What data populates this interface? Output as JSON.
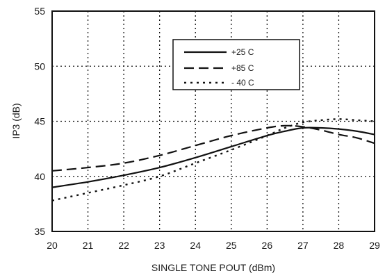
{
  "chart_data": {
    "type": "line",
    "title": "",
    "xlabel": "SINGLE TONE POUT (dBm)",
    "ylabel": "IP3 (dB)",
    "xlim": [
      20,
      29
    ],
    "ylim": [
      35,
      55
    ],
    "xticks": [
      20,
      21,
      22,
      23,
      24,
      25,
      26,
      27,
      28,
      29
    ],
    "yticks": [
      35,
      40,
      45,
      50,
      55
    ],
    "xtick_labels": [
      "20",
      "21",
      "22",
      "23",
      "24",
      "25",
      "26",
      "27",
      "28",
      "29"
    ],
    "ytick_labels": [
      "35",
      "40",
      "45",
      "50",
      "55"
    ],
    "grid": true,
    "legend_position": "upper-center",
    "series": [
      {
        "name": "+25 C",
        "style": "solid",
        "x": [
          20,
          21,
          22,
          23,
          24,
          25,
          26,
          26.5,
          27,
          27.5,
          28,
          28.5,
          29
        ],
        "y": [
          39.0,
          39.5,
          40.1,
          40.8,
          41.7,
          42.7,
          43.7,
          44.1,
          44.4,
          44.4,
          44.3,
          44.1,
          43.8
        ]
      },
      {
        "name": "+85 C",
        "style": "dashed",
        "x": [
          20,
          21,
          22,
          23,
          24,
          25,
          26,
          26.5,
          27,
          27.5,
          28,
          28.5,
          29
        ],
        "y": [
          40.5,
          40.8,
          41.2,
          41.9,
          42.8,
          43.7,
          44.4,
          44.6,
          44.5,
          44.2,
          43.8,
          43.5,
          43.0
        ]
      },
      {
        "name": "- 40 C",
        "style": "dotted",
        "x": [
          20,
          21,
          22,
          23,
          24,
          25,
          26,
          26.5,
          27,
          27.5,
          28,
          28.5,
          29
        ],
        "y": [
          37.8,
          38.5,
          39.2,
          40.0,
          41.2,
          42.4,
          43.7,
          44.4,
          44.9,
          45.1,
          45.2,
          45.1,
          45.0
        ]
      }
    ]
  }
}
